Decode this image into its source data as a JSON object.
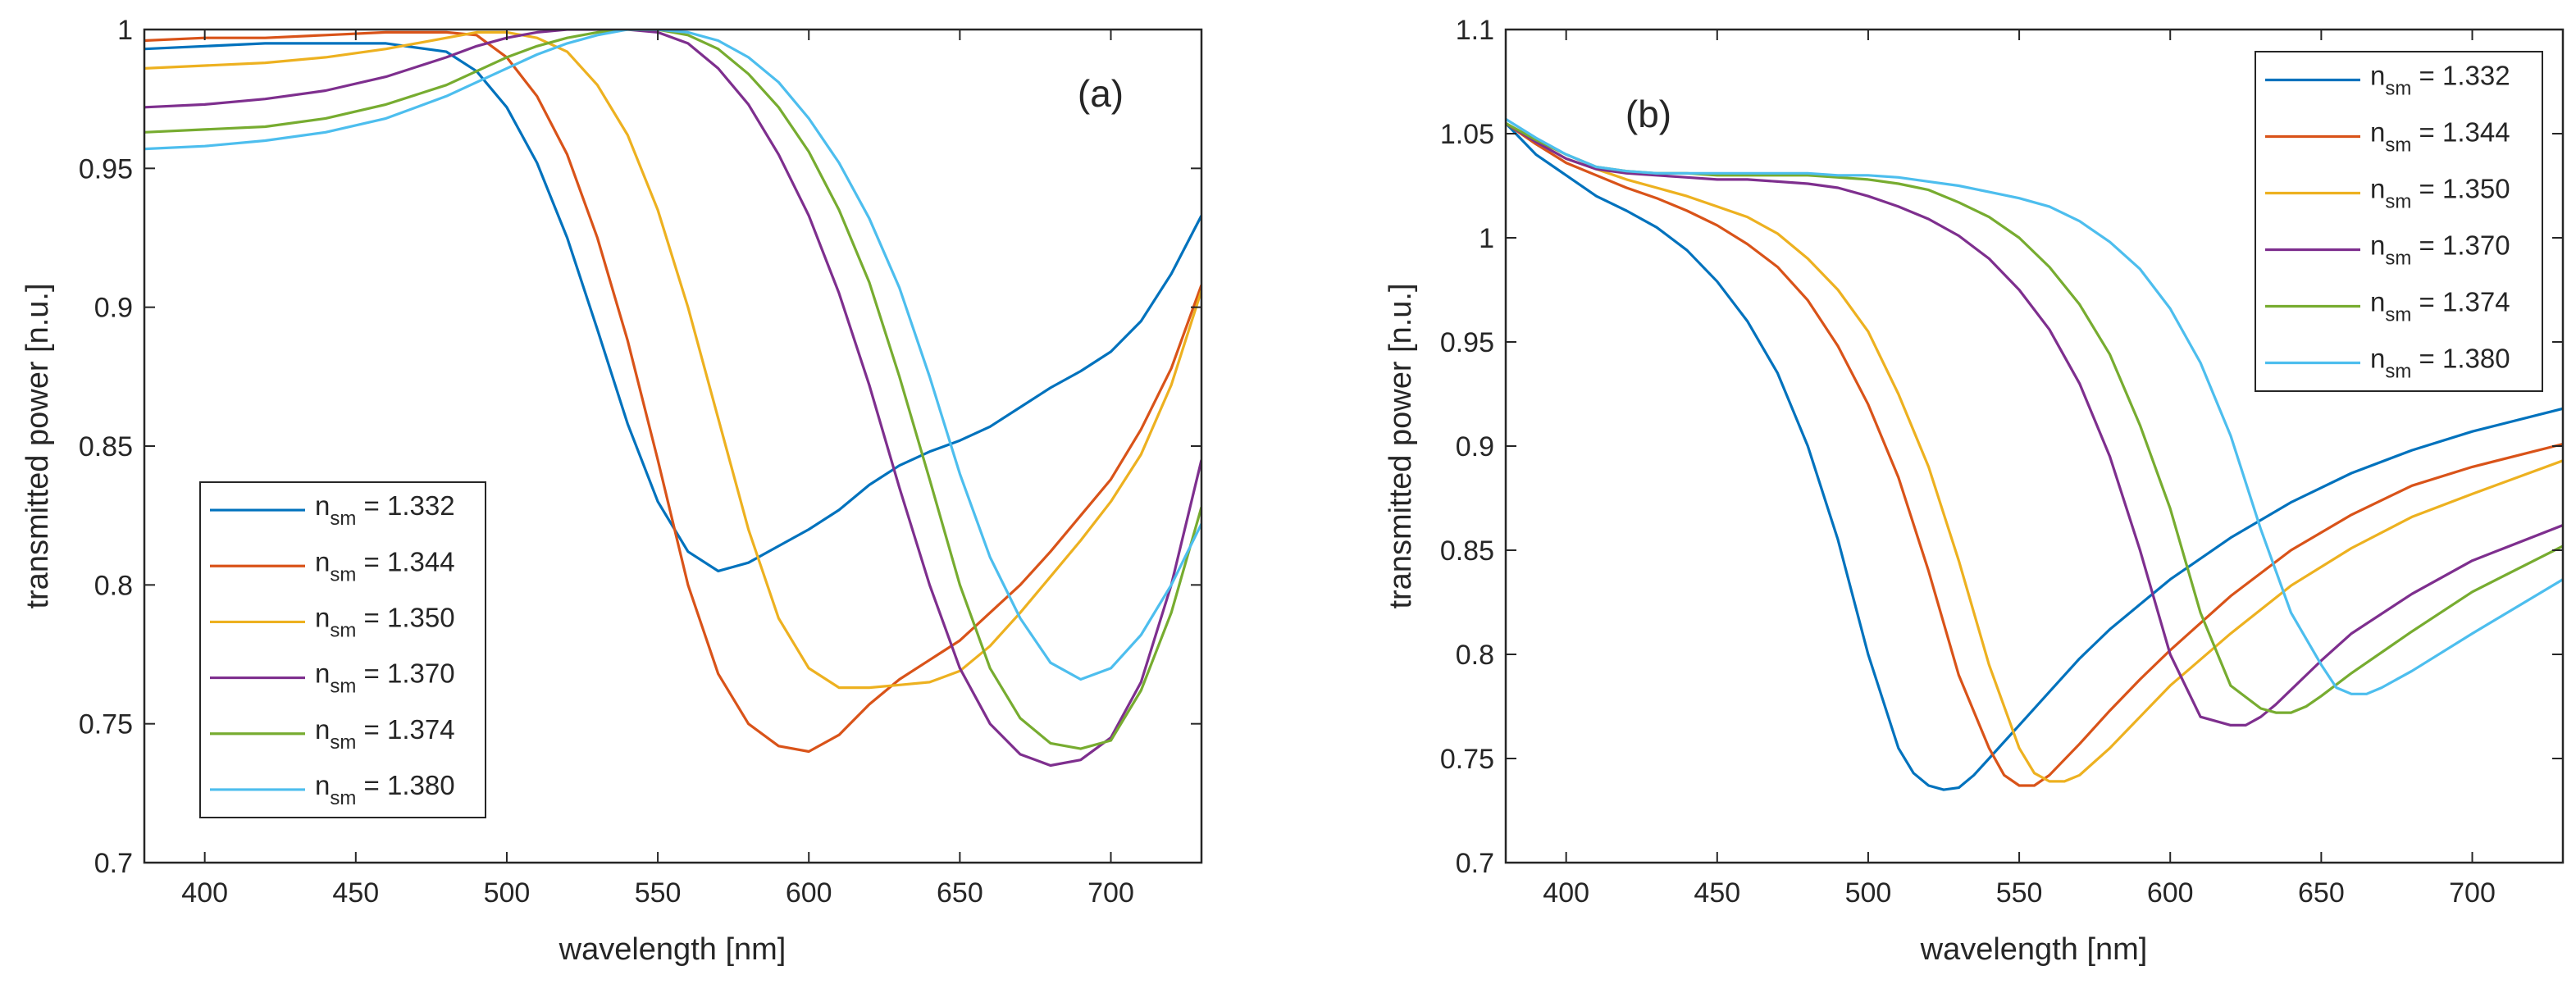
{
  "chart_data": [
    {
      "type": "line",
      "panel_label": "(a)",
      "xlabel": "wavelength [nm]",
      "ylabel": "transmitted power [n.u.]",
      "xlim": [
        380,
        730
      ],
      "ylim": [
        0.7,
        1.0
      ],
      "xticks": [
        400,
        450,
        500,
        550,
        600,
        650,
        700
      ],
      "yticks": [
        0.7,
        0.75,
        0.8,
        0.85,
        0.9,
        0.95,
        1.0
      ],
      "xtick_labels": [
        "400",
        "450",
        "500",
        "550",
        "600",
        "650",
        "700"
      ],
      "ytick_labels": [
        "0.7",
        "0.75",
        "0.8",
        "0.85",
        "0.9",
        "0.95",
        "1"
      ],
      "legend_location": "bottom-left",
      "legend_prefix": "n",
      "legend_subscript": "sm",
      "series": [
        {
          "name": "n_sm = 1.332",
          "legend_value": " = 1.332",
          "color": "#0072BD",
          "x": [
            380,
            400,
            420,
            440,
            460,
            480,
            490,
            500,
            510,
            520,
            530,
            540,
            550,
            560,
            570,
            580,
            590,
            600,
            610,
            620,
            630,
            640,
            650,
            660,
            670,
            680,
            690,
            700,
            710,
            720,
            730
          ],
          "y": [
            0.993,
            0.994,
            0.995,
            0.995,
            0.995,
            0.992,
            0.985,
            0.972,
            0.952,
            0.925,
            0.892,
            0.858,
            0.83,
            0.812,
            0.805,
            0.808,
            0.814,
            0.82,
            0.827,
            0.836,
            0.843,
            0.848,
            0.852,
            0.857,
            0.864,
            0.871,
            0.877,
            0.884,
            0.895,
            0.912,
            0.933
          ]
        },
        {
          "name": "n_sm = 1.344",
          "legend_value": " = 1.344",
          "color": "#D95319",
          "x": [
            380,
            400,
            420,
            440,
            460,
            480,
            490,
            500,
            510,
            520,
            530,
            540,
            550,
            560,
            570,
            580,
            590,
            600,
            610,
            620,
            630,
            640,
            650,
            660,
            670,
            680,
            690,
            700,
            710,
            720,
            730
          ],
          "y": [
            0.996,
            0.997,
            0.997,
            0.998,
            0.999,
            0.999,
            0.998,
            0.99,
            0.976,
            0.955,
            0.925,
            0.888,
            0.845,
            0.8,
            0.768,
            0.75,
            0.742,
            0.74,
            0.746,
            0.757,
            0.766,
            0.773,
            0.78,
            0.79,
            0.8,
            0.812,
            0.825,
            0.838,
            0.856,
            0.878,
            0.908
          ]
        },
        {
          "name": "n_sm = 1.350",
          "legend_value": " = 1.350",
          "color": "#EDB120",
          "x": [
            380,
            400,
            420,
            440,
            460,
            480,
            490,
            500,
            510,
            520,
            530,
            540,
            550,
            560,
            570,
            580,
            590,
            600,
            610,
            620,
            630,
            640,
            650,
            660,
            670,
            680,
            690,
            700,
            710,
            720,
            730
          ],
          "y": [
            0.986,
            0.987,
            0.988,
            0.99,
            0.993,
            0.997,
            0.999,
            0.999,
            0.997,
            0.992,
            0.98,
            0.962,
            0.935,
            0.9,
            0.86,
            0.82,
            0.788,
            0.77,
            0.763,
            0.763,
            0.764,
            0.765,
            0.769,
            0.778,
            0.79,
            0.803,
            0.816,
            0.83,
            0.847,
            0.872,
            0.906
          ]
        },
        {
          "name": "n_sm = 1.370",
          "legend_value": " = 1.370",
          "color": "#7E2F8E",
          "x": [
            380,
            400,
            420,
            440,
            460,
            480,
            490,
            500,
            510,
            520,
            530,
            540,
            550,
            560,
            570,
            580,
            590,
            600,
            610,
            620,
            630,
            640,
            650,
            660,
            670,
            680,
            690,
            700,
            710,
            720,
            730
          ],
          "y": [
            0.972,
            0.973,
            0.975,
            0.978,
            0.983,
            0.99,
            0.994,
            0.997,
            0.999,
            1.0,
            1.0,
            1.0,
            0.999,
            0.995,
            0.986,
            0.973,
            0.955,
            0.933,
            0.905,
            0.872,
            0.835,
            0.8,
            0.77,
            0.75,
            0.739,
            0.735,
            0.737,
            0.745,
            0.765,
            0.8,
            0.845
          ]
        },
        {
          "name": "n_sm = 1.374",
          "legend_value": " = 1.374",
          "color": "#77AC30",
          "x": [
            380,
            400,
            420,
            440,
            460,
            480,
            490,
            500,
            510,
            520,
            530,
            540,
            550,
            560,
            570,
            580,
            590,
            600,
            610,
            620,
            630,
            640,
            650,
            660,
            670,
            680,
            690,
            700,
            710,
            720,
            730
          ],
          "y": [
            0.963,
            0.964,
            0.965,
            0.968,
            0.973,
            0.98,
            0.985,
            0.99,
            0.994,
            0.997,
            0.999,
            1.0,
            1.0,
            0.998,
            0.993,
            0.984,
            0.972,
            0.956,
            0.935,
            0.909,
            0.875,
            0.838,
            0.8,
            0.77,
            0.752,
            0.743,
            0.741,
            0.744,
            0.762,
            0.79,
            0.828
          ]
        },
        {
          "name": "n_sm = 1.380",
          "legend_value": " = 1.380",
          "color": "#4DBEEE",
          "x": [
            380,
            400,
            420,
            440,
            460,
            480,
            490,
            500,
            510,
            520,
            530,
            540,
            550,
            560,
            570,
            580,
            590,
            600,
            610,
            620,
            630,
            640,
            650,
            660,
            670,
            680,
            690,
            700,
            710,
            720,
            730
          ],
          "y": [
            0.957,
            0.958,
            0.96,
            0.963,
            0.968,
            0.976,
            0.981,
            0.986,
            0.991,
            0.995,
            0.998,
            1.0,
            1.0,
            0.999,
            0.996,
            0.99,
            0.981,
            0.968,
            0.952,
            0.932,
            0.907,
            0.875,
            0.84,
            0.81,
            0.788,
            0.772,
            0.766,
            0.77,
            0.782,
            0.8,
            0.822
          ]
        }
      ]
    },
    {
      "type": "line",
      "panel_label": "(b)",
      "xlabel": "wavelength  [nm]",
      "ylabel": "transmitted power  [n.u.]",
      "xlim": [
        380,
        730
      ],
      "ylim": [
        0.7,
        1.1
      ],
      "xticks": [
        400,
        450,
        500,
        550,
        600,
        650,
        700
      ],
      "yticks": [
        0.7,
        0.75,
        0.8,
        0.85,
        0.9,
        0.95,
        1.0,
        1.05,
        1.1
      ],
      "xtick_labels": [
        "400",
        "450",
        "500",
        "550",
        "600",
        "650",
        "700"
      ],
      "ytick_labels": [
        "0.7",
        "0.75",
        "0.8",
        "0.85",
        "0.9",
        "0.95",
        "1",
        "1.05",
        "1.1"
      ],
      "legend_location": "top-right",
      "legend_prefix": "n",
      "legend_subscript": "sm",
      "series": [
        {
          "name": "n_sm = 1.332",
          "legend_value": " = 1.332",
          "color": "#0072BD",
          "x": [
            380,
            390,
            400,
            410,
            420,
            430,
            440,
            450,
            460,
            470,
            480,
            490,
            500,
            510,
            515,
            520,
            525,
            530,
            535,
            540,
            550,
            560,
            570,
            580,
            590,
            600,
            620,
            640,
            660,
            680,
            700,
            730
          ],
          "y": [
            1.055,
            1.04,
            1.03,
            1.02,
            1.013,
            1.005,
            0.994,
            0.979,
            0.96,
            0.935,
            0.9,
            0.855,
            0.8,
            0.755,
            0.743,
            0.737,
            0.735,
            0.736,
            0.742,
            0.75,
            0.766,
            0.782,
            0.798,
            0.812,
            0.824,
            0.836,
            0.856,
            0.873,
            0.887,
            0.898,
            0.907,
            0.918
          ]
        },
        {
          "name": "n_sm = 1.344",
          "legend_value": " = 1.344",
          "color": "#D95319",
          "x": [
            380,
            390,
            400,
            410,
            420,
            430,
            440,
            450,
            460,
            470,
            480,
            490,
            500,
            510,
            520,
            530,
            540,
            545,
            550,
            555,
            560,
            570,
            580,
            590,
            600,
            620,
            640,
            660,
            680,
            700,
            730
          ],
          "y": [
            1.055,
            1.045,
            1.036,
            1.03,
            1.024,
            1.019,
            1.013,
            1.006,
            0.997,
            0.986,
            0.97,
            0.948,
            0.92,
            0.885,
            0.84,
            0.79,
            0.755,
            0.742,
            0.737,
            0.737,
            0.742,
            0.757,
            0.773,
            0.788,
            0.802,
            0.828,
            0.85,
            0.867,
            0.881,
            0.89,
            0.901
          ]
        },
        {
          "name": "n_sm = 1.350",
          "legend_value": " = 1.350",
          "color": "#EDB120",
          "x": [
            380,
            390,
            400,
            410,
            420,
            430,
            440,
            450,
            460,
            470,
            480,
            490,
            500,
            510,
            520,
            530,
            540,
            550,
            555,
            560,
            565,
            570,
            580,
            590,
            600,
            620,
            640,
            660,
            680,
            700,
            730
          ],
          "y": [
            1.055,
            1.046,
            1.038,
            1.033,
            1.028,
            1.024,
            1.02,
            1.015,
            1.01,
            1.002,
            0.99,
            0.975,
            0.955,
            0.925,
            0.89,
            0.845,
            0.795,
            0.755,
            0.743,
            0.739,
            0.739,
            0.742,
            0.755,
            0.77,
            0.785,
            0.81,
            0.833,
            0.851,
            0.866,
            0.877,
            0.893
          ]
        },
        {
          "name": "n_sm = 1.370",
          "legend_value": " = 1.370",
          "color": "#7E2F8E",
          "x": [
            380,
            390,
            400,
            410,
            420,
            430,
            440,
            450,
            460,
            470,
            480,
            490,
            500,
            510,
            520,
            530,
            540,
            550,
            560,
            570,
            580,
            590,
            600,
            610,
            620,
            625,
            630,
            635,
            640,
            650,
            660,
            680,
            700,
            730
          ],
          "y": [
            1.055,
            1.046,
            1.038,
            1.033,
            1.031,
            1.03,
            1.029,
            1.028,
            1.028,
            1.027,
            1.026,
            1.024,
            1.02,
            1.015,
            1.009,
            1.001,
            0.99,
            0.975,
            0.956,
            0.93,
            0.895,
            0.85,
            0.8,
            0.77,
            0.766,
            0.766,
            0.77,
            0.776,
            0.783,
            0.797,
            0.81,
            0.829,
            0.845,
            0.862
          ]
        },
        {
          "name": "n_sm = 1.374",
          "legend_value": " = 1.374",
          "color": "#77AC30",
          "x": [
            380,
            390,
            400,
            410,
            420,
            430,
            440,
            450,
            460,
            470,
            480,
            490,
            500,
            510,
            520,
            530,
            540,
            550,
            560,
            570,
            580,
            590,
            600,
            610,
            620,
            630,
            635,
            640,
            645,
            650,
            660,
            680,
            700,
            730
          ],
          "y": [
            1.055,
            1.047,
            1.04,
            1.034,
            1.032,
            1.031,
            1.031,
            1.03,
            1.03,
            1.03,
            1.03,
            1.029,
            1.028,
            1.026,
            1.023,
            1.017,
            1.01,
            1.0,
            0.986,
            0.968,
            0.944,
            0.91,
            0.87,
            0.82,
            0.785,
            0.774,
            0.772,
            0.772,
            0.775,
            0.78,
            0.791,
            0.811,
            0.83,
            0.852
          ]
        },
        {
          "name": "n_sm = 1.380",
          "legend_value": " = 1.380",
          "color": "#4DBEEE",
          "x": [
            380,
            390,
            400,
            410,
            420,
            430,
            440,
            450,
            460,
            470,
            480,
            490,
            500,
            510,
            520,
            530,
            540,
            550,
            560,
            570,
            580,
            590,
            600,
            610,
            620,
            630,
            640,
            650,
            655,
            660,
            665,
            670,
            680,
            700,
            730
          ],
          "y": [
            1.057,
            1.048,
            1.04,
            1.034,
            1.032,
            1.031,
            1.031,
            1.031,
            1.031,
            1.031,
            1.031,
            1.03,
            1.03,
            1.029,
            1.027,
            1.025,
            1.022,
            1.019,
            1.015,
            1.008,
            0.998,
            0.985,
            0.966,
            0.94,
            0.905,
            0.86,
            0.82,
            0.795,
            0.784,
            0.781,
            0.781,
            0.784,
            0.792,
            0.81,
            0.836
          ]
        }
      ]
    }
  ]
}
